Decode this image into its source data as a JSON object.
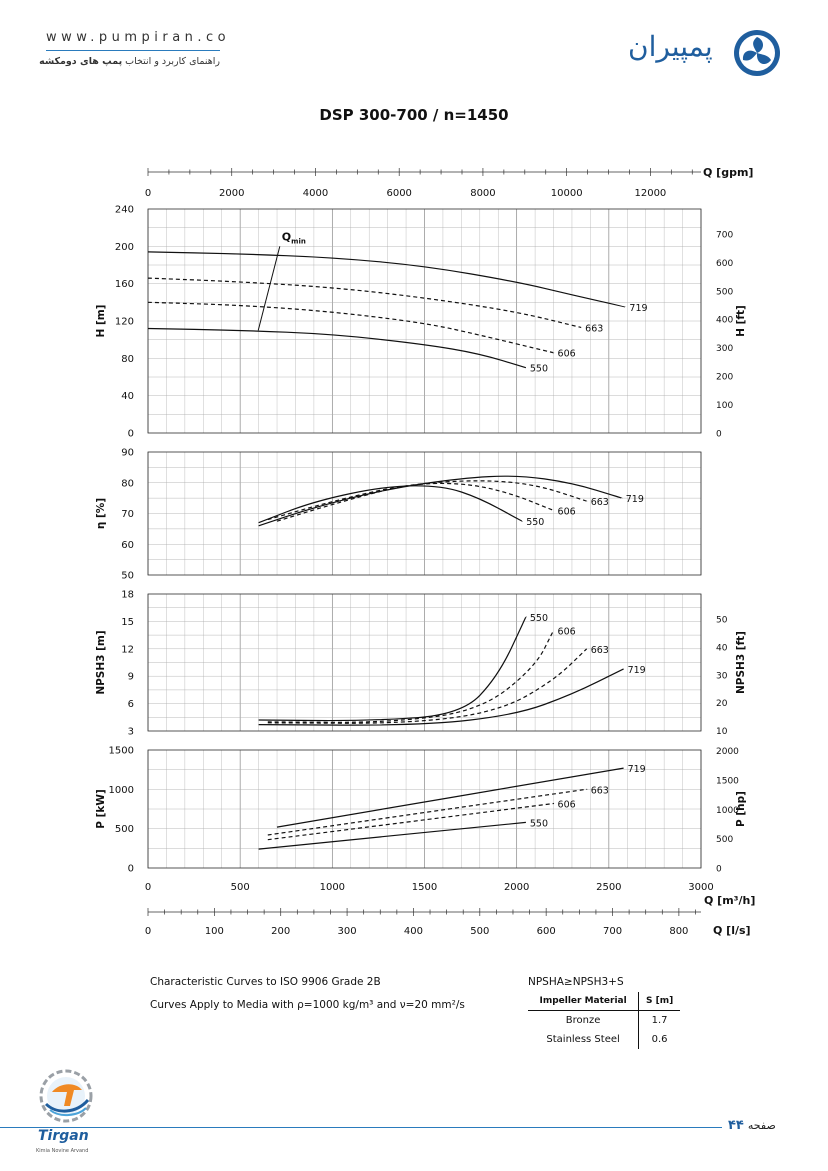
{
  "header": {
    "url": "www.pumpiran.co",
    "tagline_prefix": "راهنمای کاربرد و انتخاب ",
    "tagline_bold": "پمپ های دومکشه",
    "brand": "پمپیران"
  },
  "footer": {
    "page_word": "صفحه",
    "page_number": "۴۴",
    "logo_text": "Tirgan",
    "logo_sub": "Kimia Novine Arvand"
  },
  "colors": {
    "accent": "#1f5e9e",
    "rule": "#2a7bbd",
    "grid": "#b0b0b0",
    "curve": "#111111"
  },
  "chart_data": {
    "type": "line",
    "title": "DSP 300-700 / n=1450",
    "x": {
      "label_m3h": "Q [m³/h]",
      "ticks_m3h": [
        0,
        500,
        1000,
        1500,
        2000,
        2500,
        3000
      ],
      "xlim_m3h": [
        0,
        3000
      ],
      "label_gpm": "Q [gpm]",
      "ticks_gpm": [
        0,
        2000,
        4000,
        6000,
        8000,
        10000,
        12000
      ],
      "label_ls": "Q [l/s]",
      "ticks_ls": [
        0,
        100,
        200,
        300,
        400,
        500,
        600,
        700,
        800
      ]
    },
    "panels": [
      {
        "name": "head",
        "ylabel": "H [m]",
        "ylim": [
          0,
          240
        ],
        "yticks": [
          0,
          40,
          80,
          120,
          160,
          200,
          240
        ],
        "ylabel_right": "H [ft]",
        "yticks_right": [
          0,
          100,
          200,
          300,
          400,
          500,
          600,
          700
        ],
        "annotation": {
          "text": "Q",
          "sub": "min",
          "segment": [
            [
              598,
              110
            ],
            [
              715,
              200
            ]
          ]
        },
        "series": [
          {
            "name": "719",
            "dashed": false,
            "points": [
              [
                0,
                194
              ],
              [
                500,
                192
              ],
              [
                1000,
                188
              ],
              [
                1500,
                179
              ],
              [
                2000,
                162
              ],
              [
                2300,
                148
              ],
              [
                2590,
                135
              ]
            ]
          },
          {
            "name": "663",
            "dashed": true,
            "points": [
              [
                0,
                166
              ],
              [
                500,
                162
              ],
              [
                1000,
                156
              ],
              [
                1500,
                145
              ],
              [
                2000,
                130
              ],
              [
                2350,
                113
              ]
            ]
          },
          {
            "name": "606",
            "dashed": true,
            "points": [
              [
                0,
                140
              ],
              [
                500,
                137
              ],
              [
                1000,
                130
              ],
              [
                1500,
                118
              ],
              [
                1800,
                105
              ],
              [
                2200,
                86
              ]
            ]
          },
          {
            "name": "550",
            "dashed": false,
            "points": [
              [
                0,
                112
              ],
              [
                500,
                110
              ],
              [
                1000,
                106
              ],
              [
                1500,
                95
              ],
              [
                1800,
                85
              ],
              [
                2050,
                70
              ]
            ]
          }
        ]
      },
      {
        "name": "efficiency",
        "ylabel": "η [%]",
        "ylim": [
          50,
          90
        ],
        "yticks": [
          50,
          60,
          70,
          80,
          90
        ],
        "series": [
          {
            "name": "719",
            "dashed": false,
            "points": [
              [
                600,
                66
              ],
              [
                900,
                72
              ],
              [
                1300,
                78
              ],
              [
                1700,
                81.5
              ],
              [
                2000,
                82.5
              ],
              [
                2300,
                80
              ],
              [
                2570,
                75
              ]
            ]
          },
          {
            "name": "663",
            "dashed": true,
            "points": [
              [
                650,
                68
              ],
              [
                1000,
                74
              ],
              [
                1400,
                79.5
              ],
              [
                1800,
                81
              ],
              [
                2100,
                79.5
              ],
              [
                2380,
                74
              ]
            ]
          },
          {
            "name": "606",
            "dashed": true,
            "points": [
              [
                700,
                67.5
              ],
              [
                1000,
                73
              ],
              [
                1400,
                79.5
              ],
              [
                1700,
                80
              ],
              [
                1950,
                77
              ],
              [
                2200,
                71
              ]
            ]
          },
          {
            "name": "550",
            "dashed": false,
            "points": [
              [
                600,
                67
              ],
              [
                900,
                74
              ],
              [
                1300,
                79
              ],
              [
                1600,
                79
              ],
              [
                1800,
                75
              ],
              [
                2030,
                67.5
              ]
            ]
          }
        ]
      },
      {
        "name": "npsh",
        "ylabel": "NPSH3 [m]",
        "ylim": [
          3,
          18
        ],
        "yticks": [
          3,
          6,
          9,
          12,
          15,
          18
        ],
        "ylabel_right": "NPSH3 [ft]",
        "yticks_right": [
          10,
          20,
          30,
          40,
          50
        ],
        "series": [
          {
            "name": "550",
            "dashed": false,
            "points": [
              [
                600,
                4.2
              ],
              [
                1200,
                4.1
              ],
              [
                1700,
                4.8
              ],
              [
                1900,
                9
              ],
              [
                2050,
                15.5
              ]
            ]
          },
          {
            "name": "606",
            "dashed": true,
            "points": [
              [
                650,
                4.0
              ],
              [
                1300,
                3.9
              ],
              [
                1800,
                5.2
              ],
              [
                2100,
                10
              ],
              [
                2200,
                14
              ]
            ]
          },
          {
            "name": "663",
            "dashed": true,
            "points": [
              [
                650,
                3.9
              ],
              [
                1400,
                3.8
              ],
              [
                1900,
                5.1
              ],
              [
                2200,
                8.5
              ],
              [
                2380,
                12
              ]
            ]
          },
          {
            "name": "719",
            "dashed": false,
            "points": [
              [
                600,
                3.7
              ],
              [
                1500,
                3.6
              ],
              [
                2000,
                4.8
              ],
              [
                2300,
                7
              ],
              [
                2580,
                9.8
              ]
            ]
          }
        ]
      },
      {
        "name": "power",
        "ylabel": "P [kW]",
        "ylim": [
          0,
          1500
        ],
        "yticks": [
          0,
          500,
          1000,
          1500
        ],
        "ylabel_right": "P [hp]",
        "yticks_right": [
          0,
          500,
          1000,
          1500,
          2000
        ],
        "series": [
          {
            "name": "719",
            "dashed": false,
            "points": [
              [
                700,
                520
              ],
              [
                2580,
                1270
              ]
            ]
          },
          {
            "name": "663",
            "dashed": true,
            "points": [
              [
                650,
                420
              ],
              [
                2380,
                1000
              ]
            ]
          },
          {
            "name": "606",
            "dashed": true,
            "points": [
              [
                650,
                360
              ],
              [
                2200,
                820
              ]
            ]
          },
          {
            "name": "550",
            "dashed": false,
            "points": [
              [
                600,
                240
              ],
              [
                2050,
                580
              ]
            ]
          }
        ]
      }
    ],
    "notes": {
      "line1": "Characteristic Curves to ISO 9906 Grade 2B",
      "line2": "Curves Apply to Media with ρ=1000 kg/m³ and ν=20 mm²/s",
      "npsh_formula": "NPSHA≥NPSH3+S",
      "table_headers": [
        "Impeller Material",
        "S [m]"
      ],
      "table_rows": [
        [
          "Bronze",
          "1.7"
        ],
        [
          "Stainless Steel",
          "0.6"
        ]
      ]
    }
  }
}
